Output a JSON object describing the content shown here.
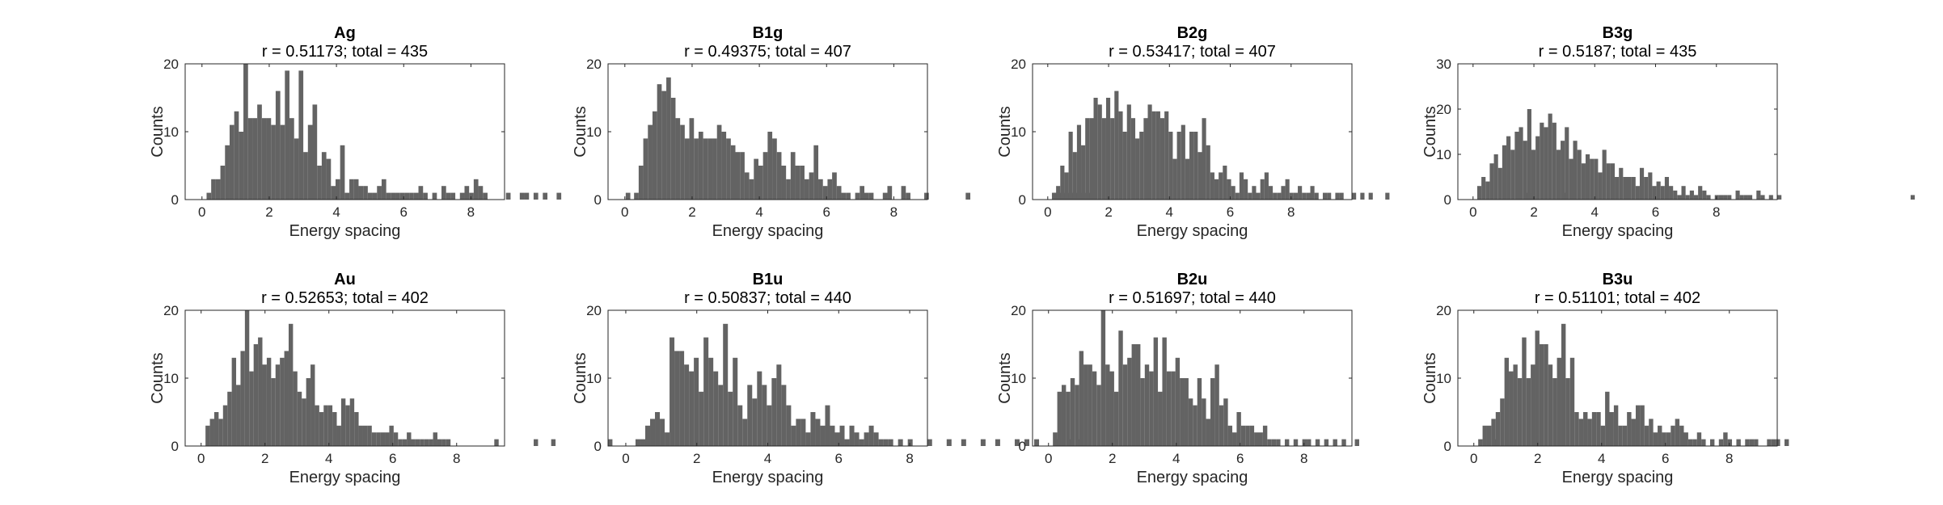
{
  "chart_data": [
    {
      "type": "bar",
      "title": "Ag",
      "subtitle": "r = 0.51173; total = 435",
      "xlabel": "Energy spacing",
      "ylabel": "Counts",
      "xlim": [
        -0.5,
        9
      ],
      "ylim": [
        0,
        20
      ],
      "xticks": [
        0,
        2,
        4,
        6,
        8
      ],
      "yticks": [
        0,
        10,
        20
      ],
      "bin_start": 0,
      "bin_width": 0.137,
      "color": "#636363",
      "values": [
        0,
        1,
        3,
        3,
        5,
        8,
        11,
        13,
        10,
        20,
        12,
        12,
        14,
        12,
        12,
        11,
        16,
        11,
        19,
        12,
        9,
        19,
        7,
        11,
        14,
        5,
        7,
        6,
        2,
        3,
        8,
        1,
        3,
        3,
        2,
        2,
        1,
        1,
        2,
        3,
        1,
        1,
        1,
        1,
        1,
        1,
        1,
        2,
        1,
        0,
        1,
        0,
        2,
        1,
        1,
        0,
        1,
        2,
        1,
        3,
        2,
        1,
        0,
        0,
        0,
        0,
        1,
        0,
        0,
        1,
        1,
        0,
        1,
        0,
        1,
        0,
        0,
        1,
        0,
        0,
        0,
        0,
        0,
        0,
        0,
        0,
        0,
        0,
        0,
        0,
        0,
        0,
        1
      ]
    },
    {
      "type": "bar",
      "title": "B1g",
      "subtitle": "r = 0.49375; total = 407",
      "xlabel": "Energy spacing",
      "ylabel": "Counts",
      "xlim": [
        -0.5,
        9
      ],
      "ylim": [
        0,
        20
      ],
      "xticks": [
        0,
        2,
        4,
        6,
        8
      ],
      "yticks": [
        0,
        10,
        20
      ],
      "bin_start": 0,
      "bin_width": 0.137,
      "color": "#636363",
      "values": [
        0,
        0,
        1,
        5,
        9,
        11,
        13,
        17,
        16,
        18,
        15,
        12,
        11,
        9,
        12,
        9,
        10,
        9,
        9,
        9,
        11,
        10,
        9,
        8,
        7,
        7,
        4,
        3,
        6,
        5,
        7,
        10,
        9,
        7,
        5,
        3,
        7,
        5,
        5,
        3,
        4,
        8,
        3,
        2,
        3,
        4,
        2,
        1,
        1,
        0,
        1,
        2,
        1,
        1,
        0,
        0,
        1,
        2,
        0,
        0,
        2,
        1,
        0,
        0,
        0,
        1,
        0,
        0,
        0,
        0,
        0,
        0,
        0,
        0,
        1,
        0,
        0,
        0,
        0,
        0,
        0,
        0,
        0,
        0,
        0,
        0,
        0,
        0,
        0,
        0,
        0,
        0,
        0,
        1,
        1,
        1,
        1,
        1,
        1,
        1,
        1,
        1
      ]
    },
    {
      "type": "bar",
      "title": "B2g",
      "subtitle": "r = 0.53417; total = 407",
      "xlabel": "Energy spacing",
      "ylabel": "Counts",
      "xlim": [
        -0.5,
        10
      ],
      "ylim": [
        0,
        20
      ],
      "xticks": [
        0,
        2,
        4,
        6,
        8
      ],
      "yticks": [
        0,
        10,
        20
      ],
      "bin_start": 0,
      "bin_width": 0.137,
      "color": "#636363",
      "values": [
        0,
        1,
        2,
        5,
        4,
        10,
        7,
        11,
        8,
        12,
        12,
        15,
        14,
        12,
        15,
        12,
        16,
        13,
        10,
        14,
        12,
        9,
        10,
        12,
        14,
        13,
        13,
        12,
        13,
        10,
        6,
        10,
        11,
        6,
        10,
        10,
        7,
        12,
        8,
        4,
        3,
        4,
        5,
        3,
        2,
        1,
        4,
        3,
        1,
        2,
        1,
        3,
        4,
        2,
        1,
        1,
        2,
        3,
        1,
        1,
        2,
        1,
        1,
        2,
        1,
        0,
        1,
        1,
        0,
        1,
        1,
        0,
        0,
        1,
        0,
        1,
        0,
        1,
        0,
        0,
        0,
        1,
        0,
        0,
        0,
        0,
        0,
        0,
        0,
        0,
        0,
        0,
        0,
        0,
        0,
        0,
        0,
        0,
        0,
        0,
        0,
        0,
        0,
        0,
        0,
        0,
        0,
        0,
        0,
        0,
        0,
        0,
        0,
        0,
        0,
        1,
        0,
        0,
        0,
        0,
        0,
        0,
        0,
        0,
        1
      ]
    },
    {
      "type": "bar",
      "title": "B3g",
      "subtitle": "r = 0.5187; total = 435",
      "xlabel": "Energy spacing",
      "ylabel": "Counts",
      "xlim": [
        -0.5,
        10
      ],
      "ylim": [
        0,
        30
      ],
      "xticks": [
        0,
        2,
        4,
        6,
        8
      ],
      "yticks": [
        0,
        10,
        20,
        30
      ],
      "bin_start": 0,
      "bin_width": 0.137,
      "color": "#636363",
      "values": [
        0,
        3,
        5,
        4,
        8,
        10,
        7,
        12,
        14,
        11,
        15,
        16,
        13,
        20,
        11,
        14,
        17,
        16,
        19,
        17,
        11,
        13,
        16,
        9,
        13,
        11,
        8,
        10,
        9,
        9,
        6,
        11,
        8,
        8,
        5,
        7,
        5,
        5,
        5,
        3,
        7,
        5,
        6,
        3,
        4,
        3,
        5,
        3,
        2,
        1,
        3,
        1,
        2,
        1,
        3,
        2,
        1,
        0,
        1,
        1,
        1,
        1,
        0,
        2,
        1,
        1,
        1,
        0,
        2,
        1,
        0,
        1,
        0,
        1,
        0,
        0,
        0,
        0,
        0,
        0,
        0,
        0,
        0,
        0,
        0,
        0,
        0,
        0,
        0,
        0,
        0,
        0,
        0,
        0,
        0,
        0,
        0,
        0,
        0,
        0,
        0,
        0,
        0,
        0,
        0,
        1,
        0,
        0,
        0,
        0,
        0,
        0,
        0,
        0,
        1
      ]
    },
    {
      "type": "bar",
      "title": "Au",
      "subtitle": "r = 0.52653; total = 402",
      "xlabel": "Energy spacing",
      "ylabel": "Counts",
      "xlim": [
        -0.5,
        9.5
      ],
      "ylim": [
        0,
        20
      ],
      "xticks": [
        0,
        2,
        4,
        6,
        8
      ],
      "yticks": [
        0,
        10,
        20
      ],
      "bin_start": 0,
      "bin_width": 0.137,
      "color": "#636363",
      "values": [
        0,
        3,
        4,
        5,
        4,
        6,
        8,
        13,
        9,
        14,
        20,
        11,
        15,
        16,
        12,
        13,
        10,
        12,
        13,
        14,
        18,
        11,
        8,
        7,
        10,
        12,
        6,
        5,
        6,
        6,
        5,
        3,
        7,
        6,
        7,
        5,
        3,
        3,
        3,
        2,
        2,
        2,
        2,
        3,
        2,
        1,
        1,
        2,
        1,
        1,
        1,
        1,
        1,
        2,
        1,
        1,
        1,
        0,
        0,
        0,
        0,
        0,
        0,
        0,
        0,
        0,
        0,
        1,
        0,
        0,
        0,
        0,
        0,
        0,
        0,
        0,
        1,
        0,
        0,
        0,
        1,
        0,
        0,
        0,
        0,
        0,
        0,
        0,
        0,
        0,
        0,
        0,
        0,
        1,
        0,
        0,
        0,
        0,
        0,
        0,
        0,
        0,
        0,
        0,
        0,
        0,
        0,
        0,
        0,
        0,
        0,
        0,
        0,
        0,
        0,
        0,
        1
      ]
    },
    {
      "type": "bar",
      "title": "B1u",
      "subtitle": "r = 0.50837; total = 440",
      "xlabel": "Energy spacing",
      "ylabel": "Counts",
      "xlim": [
        -0.5,
        8.5
      ],
      "ylim": [
        0,
        20
      ],
      "xticks": [
        0,
        2,
        4,
        6,
        8
      ],
      "yticks": [
        0,
        10,
        20
      ],
      "bin_start": 0,
      "bin_width": 0.137,
      "color": "#636363",
      "values": [
        0,
        0,
        1,
        1,
        3,
        4,
        5,
        4,
        2,
        16,
        14,
        14,
        12,
        11,
        13,
        8,
        16,
        13,
        11,
        9,
        18,
        8,
        13,
        6,
        4,
        9,
        7,
        11,
        9,
        6,
        10,
        12,
        9,
        6,
        3,
        4,
        4,
        2,
        5,
        4,
        3,
        6,
        3,
        2,
        3,
        1,
        3,
        2,
        1,
        2,
        3,
        2,
        1,
        1,
        1,
        0,
        1,
        0,
        1,
        0,
        0,
        0,
        1,
        0,
        0,
        0,
        1,
        0,
        0,
        1,
        0,
        0,
        0,
        1,
        0,
        0,
        1,
        0,
        0,
        0,
        1,
        0,
        1,
        0,
        1,
        0,
        0,
        0,
        1,
        0,
        0,
        1,
        0,
        1
      ]
    },
    {
      "type": "bar",
      "title": "B2u",
      "subtitle": "r = 0.51697; total = 440",
      "xlabel": "Energy spacing",
      "ylabel": "Counts",
      "xlim": [
        -0.5,
        9.5
      ],
      "ylim": [
        0,
        20
      ],
      "xticks": [
        0,
        2,
        4,
        6,
        8
      ],
      "yticks": [
        0,
        10,
        20
      ],
      "bin_start": 0,
      "bin_width": 0.137,
      "color": "#636363",
      "values": [
        0,
        2,
        8,
        9,
        8,
        10,
        9,
        14,
        12,
        12,
        11,
        9,
        20,
        12,
        11,
        8,
        17,
        12,
        13,
        15,
        15,
        10,
        12,
        11,
        16,
        8,
        16,
        11,
        11,
        13,
        10,
        10,
        7,
        6,
        10,
        7,
        4,
        10,
        12,
        6,
        7,
        3,
        2,
        5,
        3,
        3,
        3,
        2,
        2,
        3,
        1,
        1,
        1,
        0,
        1,
        0,
        1,
        0,
        1,
        1,
        0,
        1,
        0,
        1,
        0,
        1,
        0,
        1,
        0,
        0,
        1,
        0,
        0,
        0,
        0,
        0,
        0,
        0,
        0,
        0,
        0,
        0,
        0,
        0,
        0,
        0,
        0,
        0,
        0,
        0,
        0,
        0,
        0,
        0,
        0,
        0,
        0,
        0,
        0,
        0,
        0,
        0,
        1
      ]
    },
    {
      "type": "bar",
      "title": "B3u",
      "subtitle": "r = 0.51101; total = 402",
      "xlabel": "Energy spacing",
      "ylabel": "Counts",
      "xlim": [
        -0.5,
        9.5
      ],
      "ylim": [
        0,
        20
      ],
      "xticks": [
        0,
        2,
        4,
        6,
        8
      ],
      "yticks": [
        0,
        10,
        20
      ],
      "bin_start": 0,
      "bin_width": 0.137,
      "color": "#636363",
      "values": [
        0,
        1,
        3,
        3,
        4,
        5,
        7,
        13,
        11,
        12,
        10,
        16,
        10,
        12,
        17,
        15,
        15,
        12,
        10,
        13,
        18,
        10,
        13,
        5,
        4,
        5,
        4,
        5,
        5,
        3,
        8,
        5,
        6,
        3,
        3,
        5,
        4,
        6,
        6,
        3,
        4,
        2,
        3,
        2,
        2,
        3,
        4,
        3,
        2,
        1,
        1,
        2,
        1,
        0,
        1,
        0,
        1,
        2,
        1,
        0,
        1,
        0,
        1,
        1,
        1,
        0,
        0,
        1,
        1,
        1,
        0,
        1
      ]
    }
  ]
}
